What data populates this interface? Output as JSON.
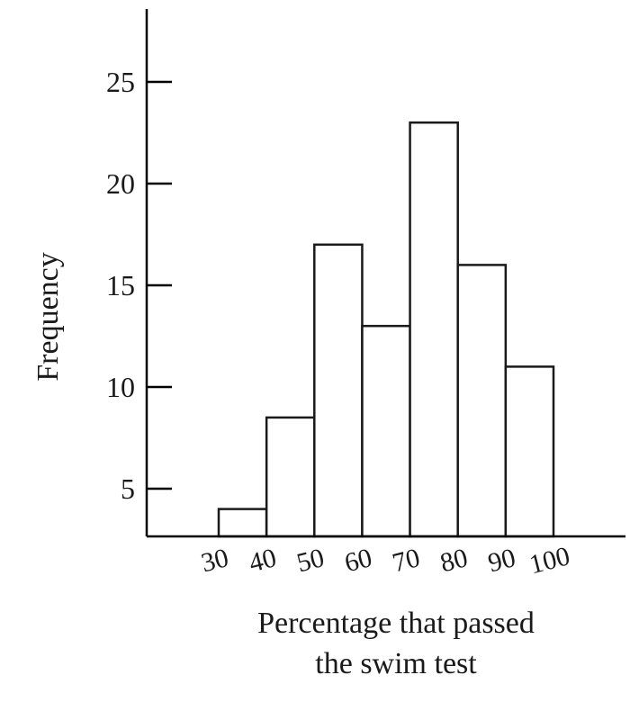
{
  "chart_data": {
    "type": "bar",
    "title": "",
    "xlabel": "Percentage that passed the swim test",
    "xlabel_lines": [
      "Percentage that passed",
      "the swim test"
    ],
    "ylabel": "Frequency",
    "bin_edges": [
      30,
      40,
      50,
      60,
      70,
      80,
      90,
      100
    ],
    "x_tick_labels": [
      "30",
      "40",
      "50",
      "60",
      "70",
      "80",
      "90",
      "100"
    ],
    "values": [
      4,
      8.5,
      17,
      13,
      23,
      16,
      11
    ],
    "y_ticks": [
      5,
      10,
      15,
      20,
      25
    ],
    "y_tick_labels": [
      "5",
      "10",
      "15",
      "20",
      "25"
    ],
    "xlim": [
      20,
      110
    ],
    "ylim": [
      2.5,
      28
    ],
    "grid": false,
    "legend": "none"
  }
}
